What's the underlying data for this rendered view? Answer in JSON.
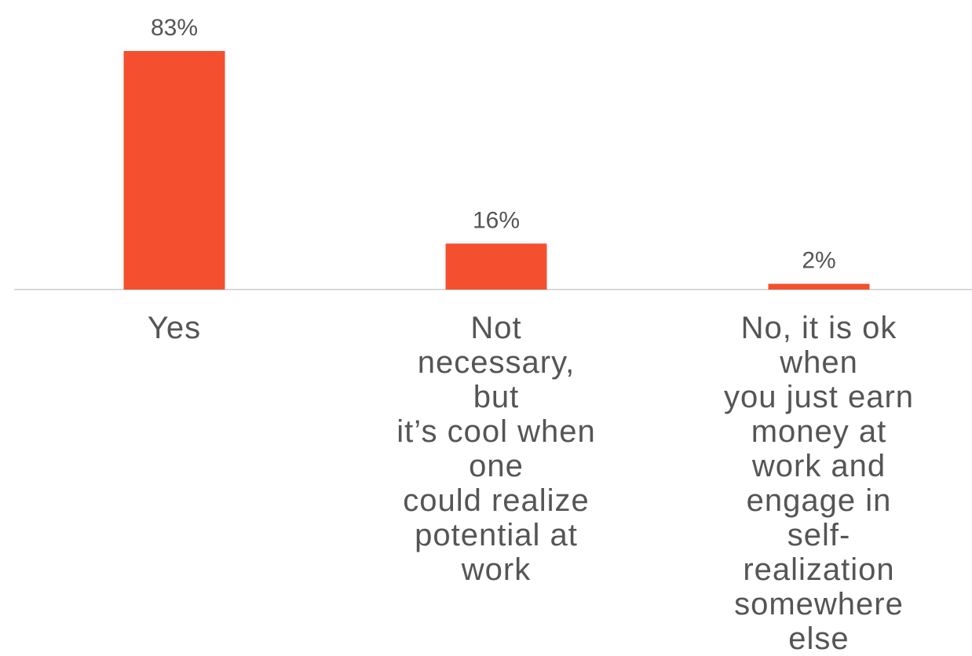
{
  "chart_data": {
    "type": "bar",
    "categories": [
      "Yes",
      "Not necessary, but it’s cool when one could realize potential at work",
      "No, it is ok when you just earn money at work and engage in self-realization somewhere else"
    ],
    "category_labels_display": [
      "Yes",
      "Not necessary, but\nit’s cool when one\ncould realize\npotential at work",
      "No, it is ok when\nyou just earn\nmoney at work and\nengage in self-\nrealization\nsomewhere else"
    ],
    "values": [
      83,
      16,
      2
    ],
    "data_labels": [
      "83%",
      "16%",
      "2%"
    ],
    "title": "",
    "xlabel": "",
    "ylabel": "",
    "ylim": [
      0,
      83
    ],
    "grid": false,
    "legend": "none",
    "colors": {
      "bar": "#F4502F",
      "axis": "#D9D9D9",
      "label_text": "#555555"
    }
  }
}
